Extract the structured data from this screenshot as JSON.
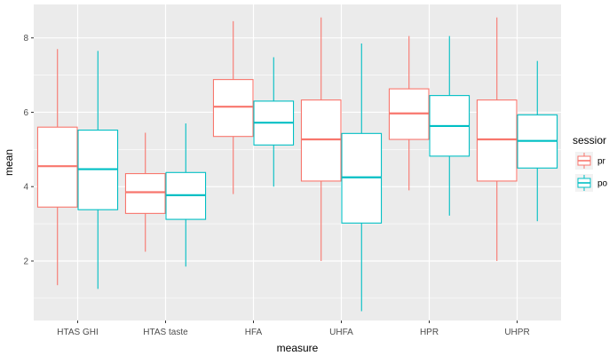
{
  "chart_data": {
    "type": "boxplot",
    "title": "",
    "xlabel": "measure",
    "ylabel": "mean",
    "ylim": [
      0.4,
      8.9
    ],
    "y_ticks": [
      "2",
      "4",
      "6",
      "8"
    ],
    "categories": [
      "HTAS GHI",
      "HTAS taste",
      "HFA",
      "UHFA",
      "HPR",
      "UHPR"
    ],
    "grid": true,
    "legend": {
      "title": "sessior",
      "position": "right",
      "entries": [
        "pr",
        "po"
      ]
    },
    "series": [
      {
        "legend_label": "pr",
        "color": "#F8766D",
        "boxes": [
          {
            "min": 1.35,
            "q1": 3.45,
            "median": 4.55,
            "q3": 5.6,
            "max": 7.7
          },
          {
            "min": 2.25,
            "q1": 3.28,
            "median": 3.85,
            "q3": 4.35,
            "max": 5.45
          },
          {
            "min": 3.8,
            "q1": 5.35,
            "median": 6.15,
            "q3": 6.88,
            "max": 8.45
          },
          {
            "min": 2.0,
            "q1": 4.15,
            "median": 5.27,
            "q3": 6.33,
            "max": 8.55
          },
          {
            "min": 3.9,
            "q1": 5.27,
            "median": 5.97,
            "q3": 6.63,
            "max": 8.05
          },
          {
            "min": 2.0,
            "q1": 4.15,
            "median": 5.27,
            "q3": 6.33,
            "max": 8.55
          }
        ]
      },
      {
        "legend_label": "po",
        "color": "#00BFC4",
        "boxes": [
          {
            "min": 1.25,
            "q1": 3.38,
            "median": 4.47,
            "q3": 5.52,
            "max": 7.65
          },
          {
            "min": 1.85,
            "q1": 3.12,
            "median": 3.77,
            "q3": 4.38,
            "max": 5.7
          },
          {
            "min": 4.0,
            "q1": 5.12,
            "median": 5.72,
            "q3": 6.3,
            "max": 7.48
          },
          {
            "min": 0.65,
            "q1": 3.02,
            "median": 4.25,
            "q3": 5.43,
            "max": 7.85
          },
          {
            "min": 3.22,
            "q1": 4.82,
            "median": 5.63,
            "q3": 6.45,
            "max": 8.05
          },
          {
            "min": 3.07,
            "q1": 4.5,
            "median": 5.23,
            "q3": 5.93,
            "max": 7.38
          }
        ]
      }
    ],
    "colors": {
      "panel_background": "#EBEBEB",
      "grid_major": "#FFFFFF",
      "tick_text": "#4D4D4D"
    }
  }
}
